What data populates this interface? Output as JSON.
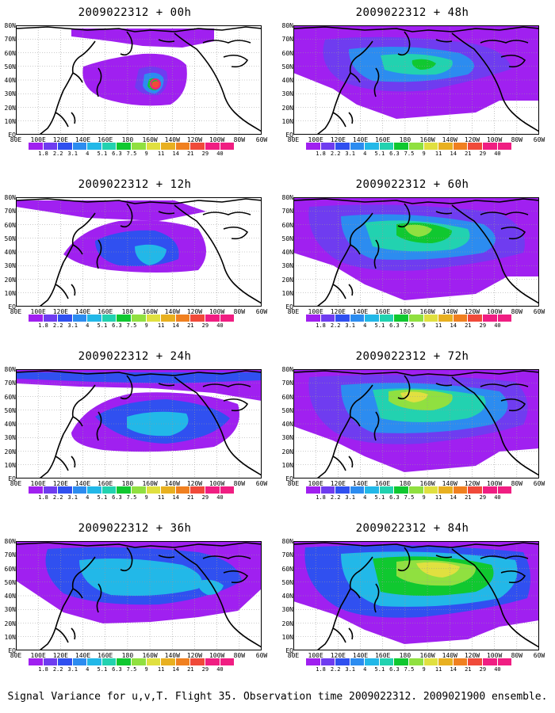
{
  "footer": "Signal Variance for u,v,T. Flight 35. Observation time 2009022312. 2009021900 ensemble.",
  "y_labels": [
    "80N",
    "70N",
    "60N",
    "50N",
    "40N",
    "30N",
    "20N",
    "10N",
    "EQ"
  ],
  "x_labels": [
    "80E",
    "100E",
    "120E",
    "140E",
    "160E",
    "180",
    "160W",
    "140W",
    "120W",
    "100W",
    "80W",
    "60W"
  ],
  "colorbar": {
    "colors": [
      "#a020f0",
      "#6f3cf0",
      "#3050f0",
      "#2c8cf0",
      "#22b8e8",
      "#22d2b0",
      "#10c830",
      "#90e040",
      "#e0e040",
      "#e8b020",
      "#f08020",
      "#f04a3a",
      "#f01e82"
    ],
    "labels": [
      "1.8",
      "2.2",
      "3.1",
      "4",
      "5.1",
      "6.3",
      "7.5",
      "9",
      "11",
      "14",
      "21",
      "29",
      "40"
    ]
  },
  "panels": [
    {
      "title": "2009022312 + 00h"
    },
    {
      "title": "2009022312 + 48h"
    },
    {
      "title": "2009022312 + 12h"
    },
    {
      "title": "2009022312 + 60h"
    },
    {
      "title": "2009022312 + 24h"
    },
    {
      "title": "2009022312 + 72h"
    },
    {
      "title": "2009022312 + 36h"
    },
    {
      "title": "2009022312 + 84h"
    }
  ]
}
